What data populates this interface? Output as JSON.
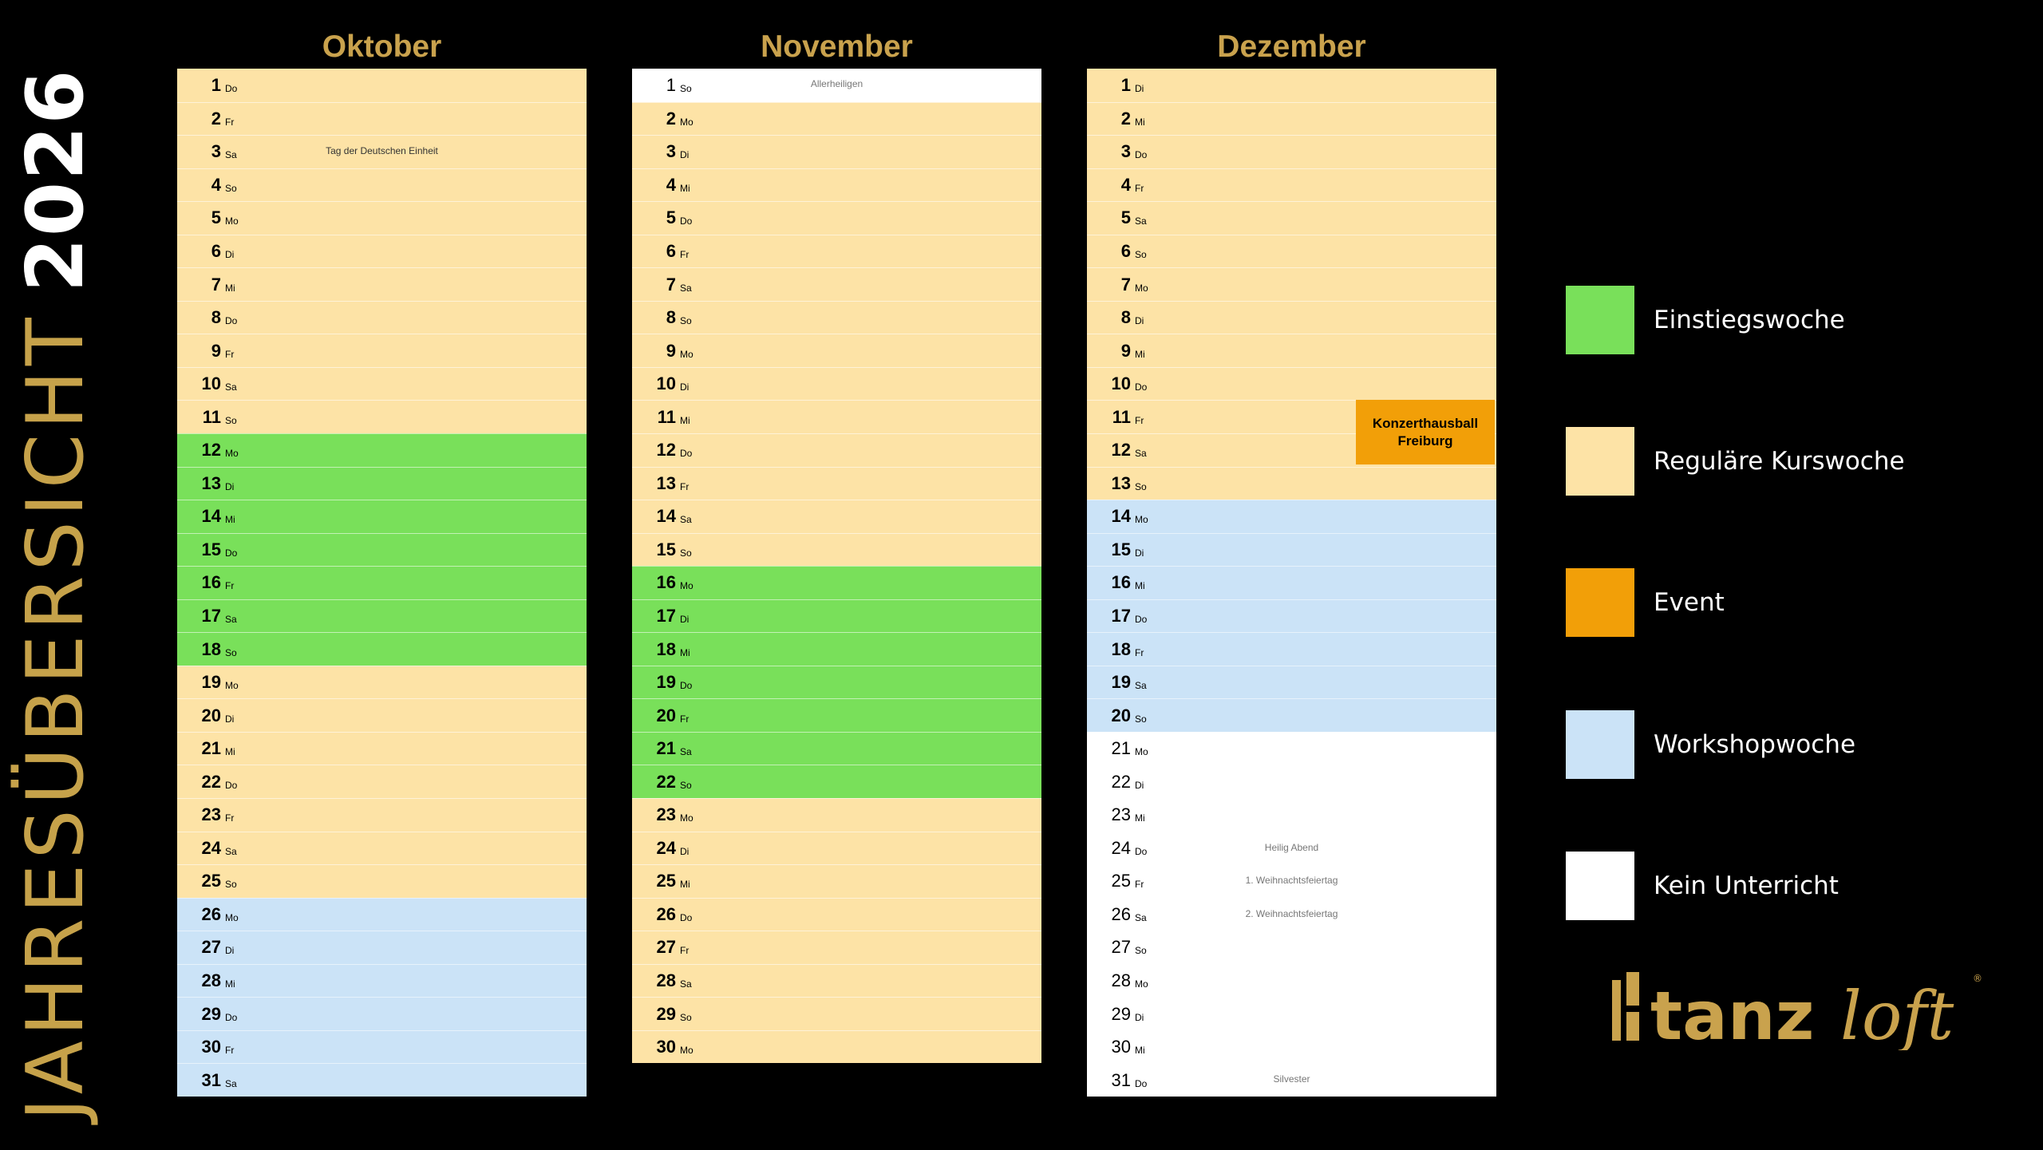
{
  "title": {
    "text": "JAHRESÜBERSICHT",
    "year": "2026"
  },
  "colors": {
    "regular": "#fde3a6",
    "einstieg": "#79e05a",
    "event": "#f29f08",
    "workshop": "#cbe3f7",
    "free": "#ffffff",
    "gold": "#c9a24d"
  },
  "months": [
    {
      "name": "Oktober",
      "days": [
        {
          "n": "1",
          "wd": "Do",
          "type": "reg",
          "note": ""
        },
        {
          "n": "2",
          "wd": "Fr",
          "type": "reg",
          "note": ""
        },
        {
          "n": "3",
          "wd": "Sa",
          "type": "reg",
          "note": "Tag der Deutschen Einheit"
        },
        {
          "n": "4",
          "wd": "So",
          "type": "reg",
          "note": ""
        },
        {
          "n": "5",
          "wd": "Mo",
          "type": "reg",
          "note": ""
        },
        {
          "n": "6",
          "wd": "Di",
          "type": "reg",
          "note": ""
        },
        {
          "n": "7",
          "wd": "Mi",
          "type": "reg",
          "note": ""
        },
        {
          "n": "8",
          "wd": "Do",
          "type": "reg",
          "note": ""
        },
        {
          "n": "9",
          "wd": "Fr",
          "type": "reg",
          "note": ""
        },
        {
          "n": "10",
          "wd": "Sa",
          "type": "reg",
          "note": ""
        },
        {
          "n": "11",
          "wd": "So",
          "type": "reg",
          "note": ""
        },
        {
          "n": "12",
          "wd": "Mo",
          "type": "ein",
          "note": ""
        },
        {
          "n": "13",
          "wd": "Di",
          "type": "ein",
          "note": ""
        },
        {
          "n": "14",
          "wd": "Mi",
          "type": "ein",
          "note": ""
        },
        {
          "n": "15",
          "wd": "Do",
          "type": "ein",
          "note": ""
        },
        {
          "n": "16",
          "wd": "Fr",
          "type": "ein",
          "note": ""
        },
        {
          "n": "17",
          "wd": "Sa",
          "type": "ein",
          "note": ""
        },
        {
          "n": "18",
          "wd": "So",
          "type": "ein",
          "note": ""
        },
        {
          "n": "19",
          "wd": "Mo",
          "type": "reg",
          "note": ""
        },
        {
          "n": "20",
          "wd": "Di",
          "type": "reg",
          "note": ""
        },
        {
          "n": "21",
          "wd": "Mi",
          "type": "reg",
          "note": ""
        },
        {
          "n": "22",
          "wd": "Do",
          "type": "reg",
          "note": ""
        },
        {
          "n": "23",
          "wd": "Fr",
          "type": "reg",
          "note": ""
        },
        {
          "n": "24",
          "wd": "Sa",
          "type": "reg",
          "note": ""
        },
        {
          "n": "25",
          "wd": "So",
          "type": "reg",
          "note": ""
        },
        {
          "n": "26",
          "wd": "Mo",
          "type": "work",
          "note": ""
        },
        {
          "n": "27",
          "wd": "Di",
          "type": "work",
          "note": ""
        },
        {
          "n": "28",
          "wd": "Mi",
          "type": "work",
          "note": ""
        },
        {
          "n": "29",
          "wd": "Do",
          "type": "work",
          "note": ""
        },
        {
          "n": "30",
          "wd": "Fr",
          "type": "work",
          "note": ""
        },
        {
          "n": "31",
          "wd": "Sa",
          "type": "work",
          "note": ""
        }
      ]
    },
    {
      "name": "November",
      "days": [
        {
          "n": "1",
          "wd": "So",
          "type": "free",
          "note": "Allerheiligen"
        },
        {
          "n": "2",
          "wd": "Mo",
          "type": "reg",
          "note": ""
        },
        {
          "n": "3",
          "wd": "Di",
          "type": "reg",
          "note": ""
        },
        {
          "n": "4",
          "wd": "Mi",
          "type": "reg",
          "note": ""
        },
        {
          "n": "5",
          "wd": "Do",
          "type": "reg",
          "note": ""
        },
        {
          "n": "6",
          "wd": "Fr",
          "type": "reg",
          "note": ""
        },
        {
          "n": "7",
          "wd": "Sa",
          "type": "reg",
          "note": ""
        },
        {
          "n": "8",
          "wd": "So",
          "type": "reg",
          "note": ""
        },
        {
          "n": "9",
          "wd": "Mo",
          "type": "reg",
          "note": ""
        },
        {
          "n": "10",
          "wd": "Di",
          "type": "reg",
          "note": ""
        },
        {
          "n": "11",
          "wd": "Mi",
          "type": "reg",
          "note": ""
        },
        {
          "n": "12",
          "wd": "Do",
          "type": "reg",
          "note": ""
        },
        {
          "n": "13",
          "wd": "Fr",
          "type": "reg",
          "note": ""
        },
        {
          "n": "14",
          "wd": "Sa",
          "type": "reg",
          "note": ""
        },
        {
          "n": "15",
          "wd": "So",
          "type": "reg",
          "note": ""
        },
        {
          "n": "16",
          "wd": "Mo",
          "type": "ein",
          "note": ""
        },
        {
          "n": "17",
          "wd": "Di",
          "type": "ein",
          "note": ""
        },
        {
          "n": "18",
          "wd": "Mi",
          "type": "ein",
          "note": ""
        },
        {
          "n": "19",
          "wd": "Do",
          "type": "ein",
          "note": ""
        },
        {
          "n": "20",
          "wd": "Fr",
          "type": "ein",
          "note": ""
        },
        {
          "n": "21",
          "wd": "Sa",
          "type": "ein",
          "note": ""
        },
        {
          "n": "22",
          "wd": "So",
          "type": "ein",
          "note": ""
        },
        {
          "n": "23",
          "wd": "Mo",
          "type": "reg",
          "note": ""
        },
        {
          "n": "24",
          "wd": "Di",
          "type": "reg",
          "note": ""
        },
        {
          "n": "25",
          "wd": "Mi",
          "type": "reg",
          "note": ""
        },
        {
          "n": "26",
          "wd": "Do",
          "type": "reg",
          "note": ""
        },
        {
          "n": "27",
          "wd": "Fr",
          "type": "reg",
          "note": ""
        },
        {
          "n": "28",
          "wd": "Sa",
          "type": "reg",
          "note": ""
        },
        {
          "n": "29",
          "wd": "So",
          "type": "reg",
          "note": ""
        },
        {
          "n": "30",
          "wd": "Mo",
          "type": "reg",
          "note": ""
        }
      ]
    },
    {
      "name": "Dezember",
      "days": [
        {
          "n": "1",
          "wd": "Di",
          "type": "reg",
          "note": ""
        },
        {
          "n": "2",
          "wd": "Mi",
          "type": "reg",
          "note": ""
        },
        {
          "n": "3",
          "wd": "Do",
          "type": "reg",
          "note": ""
        },
        {
          "n": "4",
          "wd": "Fr",
          "type": "reg",
          "note": ""
        },
        {
          "n": "5",
          "wd": "Sa",
          "type": "reg",
          "note": ""
        },
        {
          "n": "6",
          "wd": "So",
          "type": "reg",
          "note": ""
        },
        {
          "n": "7",
          "wd": "Mo",
          "type": "reg",
          "note": ""
        },
        {
          "n": "8",
          "wd": "Di",
          "type": "reg",
          "note": ""
        },
        {
          "n": "9",
          "wd": "Mi",
          "type": "reg",
          "note": ""
        },
        {
          "n": "10",
          "wd": "Do",
          "type": "reg",
          "note": ""
        },
        {
          "n": "11",
          "wd": "Fr",
          "type": "reg",
          "note": ""
        },
        {
          "n": "12",
          "wd": "Sa",
          "type": "reg",
          "note": ""
        },
        {
          "n": "13",
          "wd": "So",
          "type": "reg",
          "note": ""
        },
        {
          "n": "14",
          "wd": "Mo",
          "type": "work",
          "note": ""
        },
        {
          "n": "15",
          "wd": "Di",
          "type": "work",
          "note": ""
        },
        {
          "n": "16",
          "wd": "Mi",
          "type": "work",
          "note": ""
        },
        {
          "n": "17",
          "wd": "Do",
          "type": "work",
          "note": ""
        },
        {
          "n": "18",
          "wd": "Fr",
          "type": "work",
          "note": ""
        },
        {
          "n": "19",
          "wd": "Sa",
          "type": "work",
          "note": ""
        },
        {
          "n": "20",
          "wd": "So",
          "type": "work",
          "note": ""
        },
        {
          "n": "21",
          "wd": "Mo",
          "type": "free",
          "note": ""
        },
        {
          "n": "22",
          "wd": "Di",
          "type": "free",
          "note": ""
        },
        {
          "n": "23",
          "wd": "Mi",
          "type": "free",
          "note": ""
        },
        {
          "n": "24",
          "wd": "Do",
          "type": "free",
          "note": "Heilig Abend"
        },
        {
          "n": "25",
          "wd": "Fr",
          "type": "free",
          "note": "1. Weihnachtsfeiertag"
        },
        {
          "n": "26",
          "wd": "Sa",
          "type": "free",
          "note": "2. Weihnachtsfeiertag"
        },
        {
          "n": "27",
          "wd": "So",
          "type": "free",
          "note": ""
        },
        {
          "n": "28",
          "wd": "Mo",
          "type": "free",
          "note": ""
        },
        {
          "n": "29",
          "wd": "Di",
          "type": "free",
          "note": ""
        },
        {
          "n": "30",
          "wd": "Mi",
          "type": "free",
          "note": ""
        },
        {
          "n": "31",
          "wd": "Do",
          "type": "free",
          "note": "Silvester"
        }
      ]
    }
  ],
  "event": {
    "line1": "Konzerthausball",
    "line2": "Freiburg"
  },
  "legend": [
    {
      "label": "Einstiegswoche",
      "type": "ein"
    },
    {
      "label": "Reguläre Kurswoche",
      "type": "reg"
    },
    {
      "label": "Event",
      "type": "event"
    },
    {
      "label": "Workshopwoche",
      "type": "work"
    },
    {
      "label": "Kein Unterricht",
      "type": "free"
    }
  ],
  "logo": {
    "part1": "tanz",
    "part2": "loft",
    "mark": "®"
  }
}
